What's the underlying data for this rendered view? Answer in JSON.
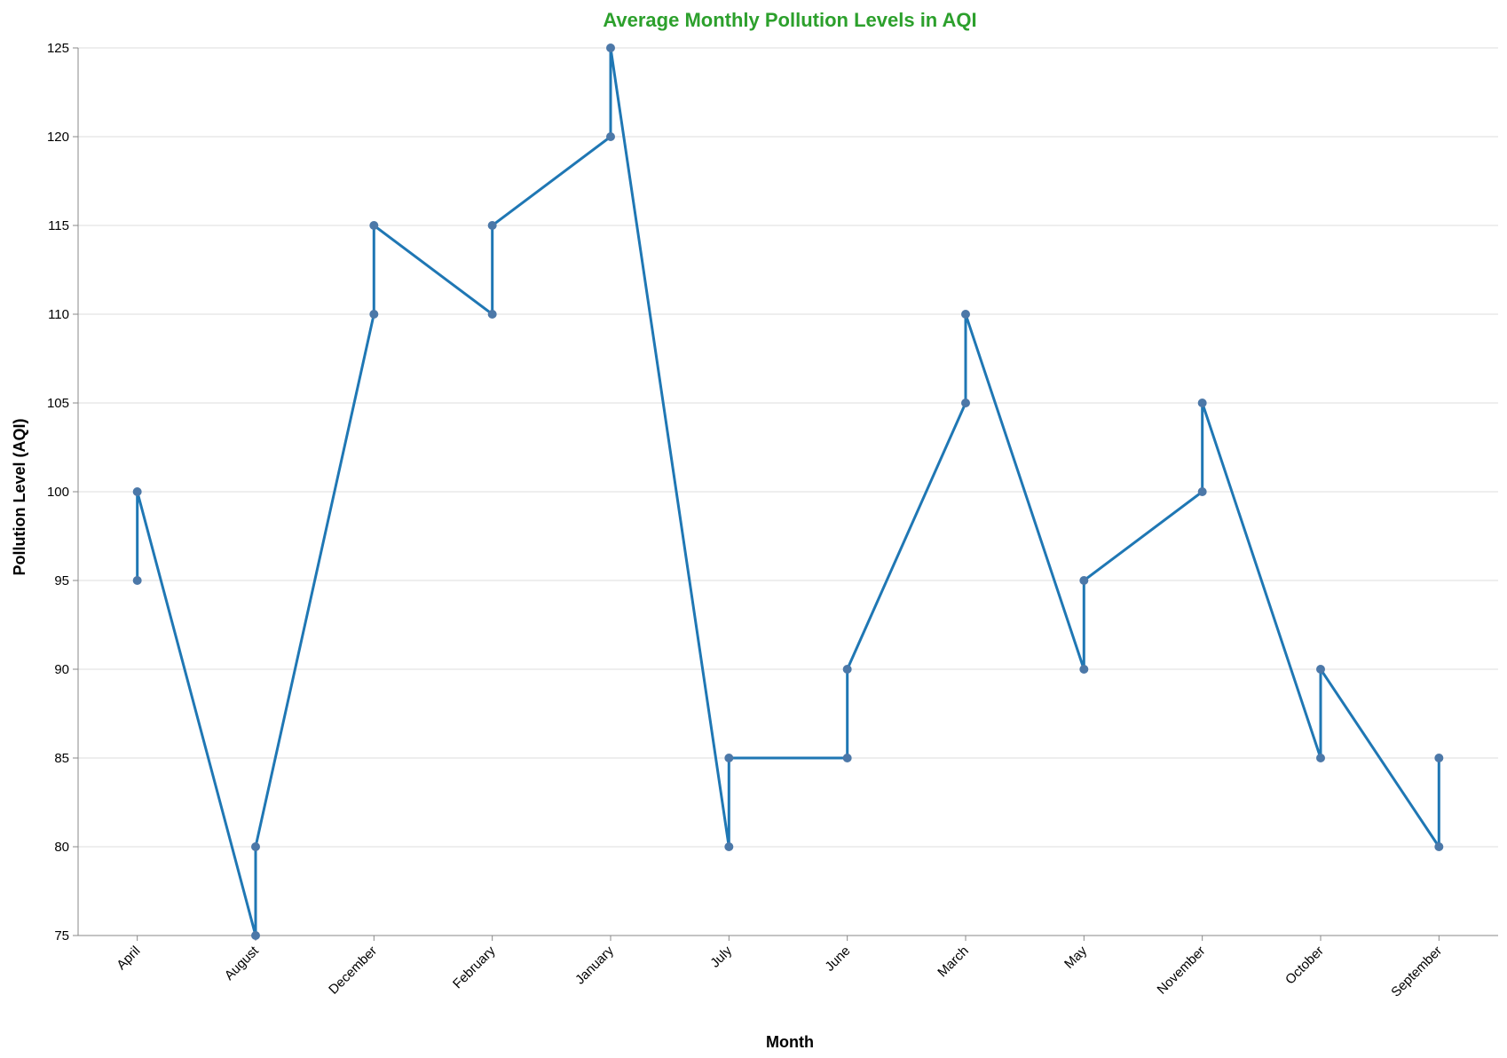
{
  "chart_data": {
    "type": "line",
    "title": "Average Monthly Pollution Levels in AQI",
    "xlabel": "Month",
    "ylabel": "Pollution Level (AQI)",
    "categories": [
      "April",
      "August",
      "December",
      "February",
      "January",
      "July",
      "June",
      "March",
      "May",
      "November",
      "October",
      "September"
    ],
    "points": [
      {
        "month": "April",
        "value": 95
      },
      {
        "month": "April",
        "value": 100
      },
      {
        "month": "August",
        "value": 75
      },
      {
        "month": "August",
        "value": 80
      },
      {
        "month": "December",
        "value": 110
      },
      {
        "month": "December",
        "value": 115
      },
      {
        "month": "February",
        "value": 110
      },
      {
        "month": "February",
        "value": 115
      },
      {
        "month": "January",
        "value": 120
      },
      {
        "month": "January",
        "value": 125
      },
      {
        "month": "July",
        "value": 80
      },
      {
        "month": "July",
        "value": 85
      },
      {
        "month": "June",
        "value": 85
      },
      {
        "month": "June",
        "value": 90
      },
      {
        "month": "March",
        "value": 105
      },
      {
        "month": "March",
        "value": 110
      },
      {
        "month": "May",
        "value": 95
      },
      {
        "month": "May",
        "value": 90
      },
      {
        "month": "November",
        "value": 100
      },
      {
        "month": "November",
        "value": 105
      },
      {
        "month": "October",
        "value": 85
      },
      {
        "month": "October",
        "value": 90
      },
      {
        "month": "September",
        "value": 80
      },
      {
        "month": "September",
        "value": 85
      }
    ],
    "line_path": [
      {
        "month": "April",
        "value": 95
      },
      {
        "month": "April",
        "value": 100
      },
      {
        "month": "August",
        "value": 75
      },
      {
        "month": "August",
        "value": 80
      },
      {
        "month": "December",
        "value": 110
      },
      {
        "month": "December",
        "value": 115
      },
      {
        "month": "February",
        "value": 110
      },
      {
        "month": "February",
        "value": 115
      },
      {
        "month": "January",
        "value": 120
      },
      {
        "month": "January",
        "value": 125
      },
      {
        "month": "July",
        "value": 80
      },
      {
        "month": "July",
        "value": 85
      },
      {
        "month": "June",
        "value": 85
      },
      {
        "month": "June",
        "value": 90
      },
      {
        "month": "March",
        "value": 105
      },
      {
        "month": "March",
        "value": 110
      },
      {
        "month": "May",
        "value": 90
      },
      {
        "month": "May",
        "value": 95
      },
      {
        "month": "November",
        "value": 100
      },
      {
        "month": "November",
        "value": 105
      },
      {
        "month": "October",
        "value": 85
      },
      {
        "month": "October",
        "value": 90
      },
      {
        "month": "September",
        "value": 80
      },
      {
        "month": "September",
        "value": 85
      }
    ],
    "ylim": [
      75,
      125
    ],
    "yticks": [
      75,
      80,
      85,
      90,
      95,
      100,
      105,
      110,
      115,
      120,
      125
    ],
    "grid": true,
    "colors": {
      "line": "#1f77b4",
      "point": "#4c78a8",
      "title": "#2ca02c",
      "grid": "#dddddd",
      "axis": "#888888"
    }
  }
}
